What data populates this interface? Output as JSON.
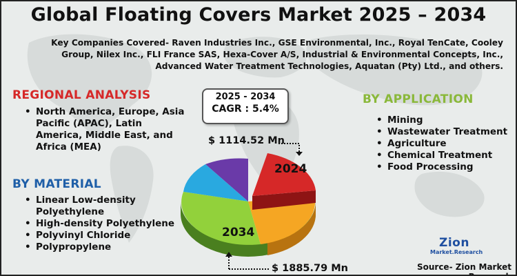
{
  "title": "Global Floating Covers Market 2025 – 2034",
  "companies": "Key Companies Covered- Raven Industries Inc., GSE Environmental, Inc., Royal TenCate, Cooley Group, Nilex Inc., FLI France SAS, Hexa-Cover A/S, Industrial & Environmental Concepts, Inc., Advanced Water Treatment Technologies, Aquatan (Pty) Ltd., and others.",
  "regional": {
    "heading": "REGIONAL ANALYSIS",
    "items": [
      "North America, Europe, Asia Pacific (APAC), Latin America, Middle East, and Africa (MEA)"
    ]
  },
  "material": {
    "heading": "BY MATERIAL",
    "items": [
      "Linear Low-density Polyethylene",
      "High-density Polyethylene",
      "Polyvinyl Chloride",
      "Polypropylene"
    ]
  },
  "application": {
    "heading": "BY APPLICATION",
    "items": [
      "Mining",
      "Wastewater Treatment",
      "Agriculture",
      "Chemical Treatment",
      "Food Processing"
    ]
  },
  "cagr": {
    "period": "2025 - 2034",
    "value": "CAGR : 5.4%"
  },
  "market": {
    "value_2024": "$ 1114.52 Mn",
    "label_2024": "2024",
    "value_2034": "$ 1885.79 Mn",
    "label_2034": "2034"
  },
  "logo": {
    "main": "Zion",
    "sub": "Market.Research"
  },
  "source": "Source- Zion Market Research",
  "colors": {
    "regional": "#d62828",
    "material": "#1f5fa8",
    "application": "#8ab83a",
    "slice_red": "#d62828",
    "slice_orange": "#f5a623",
    "slice_green": "#92d13b",
    "slice_blue": "#29a9e0",
    "slice_purple": "#6a3aa8"
  }
}
